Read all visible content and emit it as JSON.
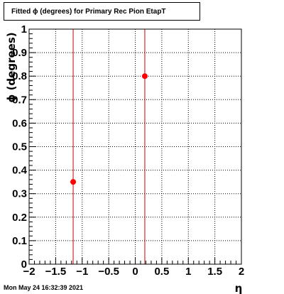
{
  "footer": {
    "date": "Mon May 24 16:32:39 2021"
  },
  "chart_data": {
    "type": "scatter",
    "title": "Fitted ϕ (degrees) for Primary Rec Pion EtapT",
    "xlabel": "η",
    "ylabel": "ϕ (degrees)",
    "xlim": [
      -2,
      2
    ],
    "ylim": [
      0,
      1
    ],
    "x_ticks": [
      -2,
      -1.5,
      -1,
      -0.5,
      0,
      0.5,
      1,
      1.5,
      2
    ],
    "x_tick_labels": [
      "−2",
      "−1.5",
      "−1",
      "−0.5",
      "0",
      "0.5",
      "1",
      "1.5",
      "2"
    ],
    "y_ticks": [
      0,
      0.1,
      0.2,
      0.3,
      0.4,
      0.5,
      0.6,
      0.7,
      0.8,
      0.9,
      1
    ],
    "y_tick_labels": [
      "0",
      "0.1",
      "0.2",
      "0.3",
      "0.4",
      "0.5",
      "0.6",
      "0.7",
      "0.8",
      "0.9",
      "1"
    ],
    "grid": true,
    "series": [
      {
        "x": [
          -1.17,
          0.18
        ],
        "y": [
          0.35,
          0.8
        ],
        "color": "#ff0000"
      }
    ],
    "vertical_lines": [
      {
        "x": -1.17,
        "color": "#cc0000"
      },
      {
        "x": 0.18,
        "color": "#cc0000"
      }
    ]
  }
}
